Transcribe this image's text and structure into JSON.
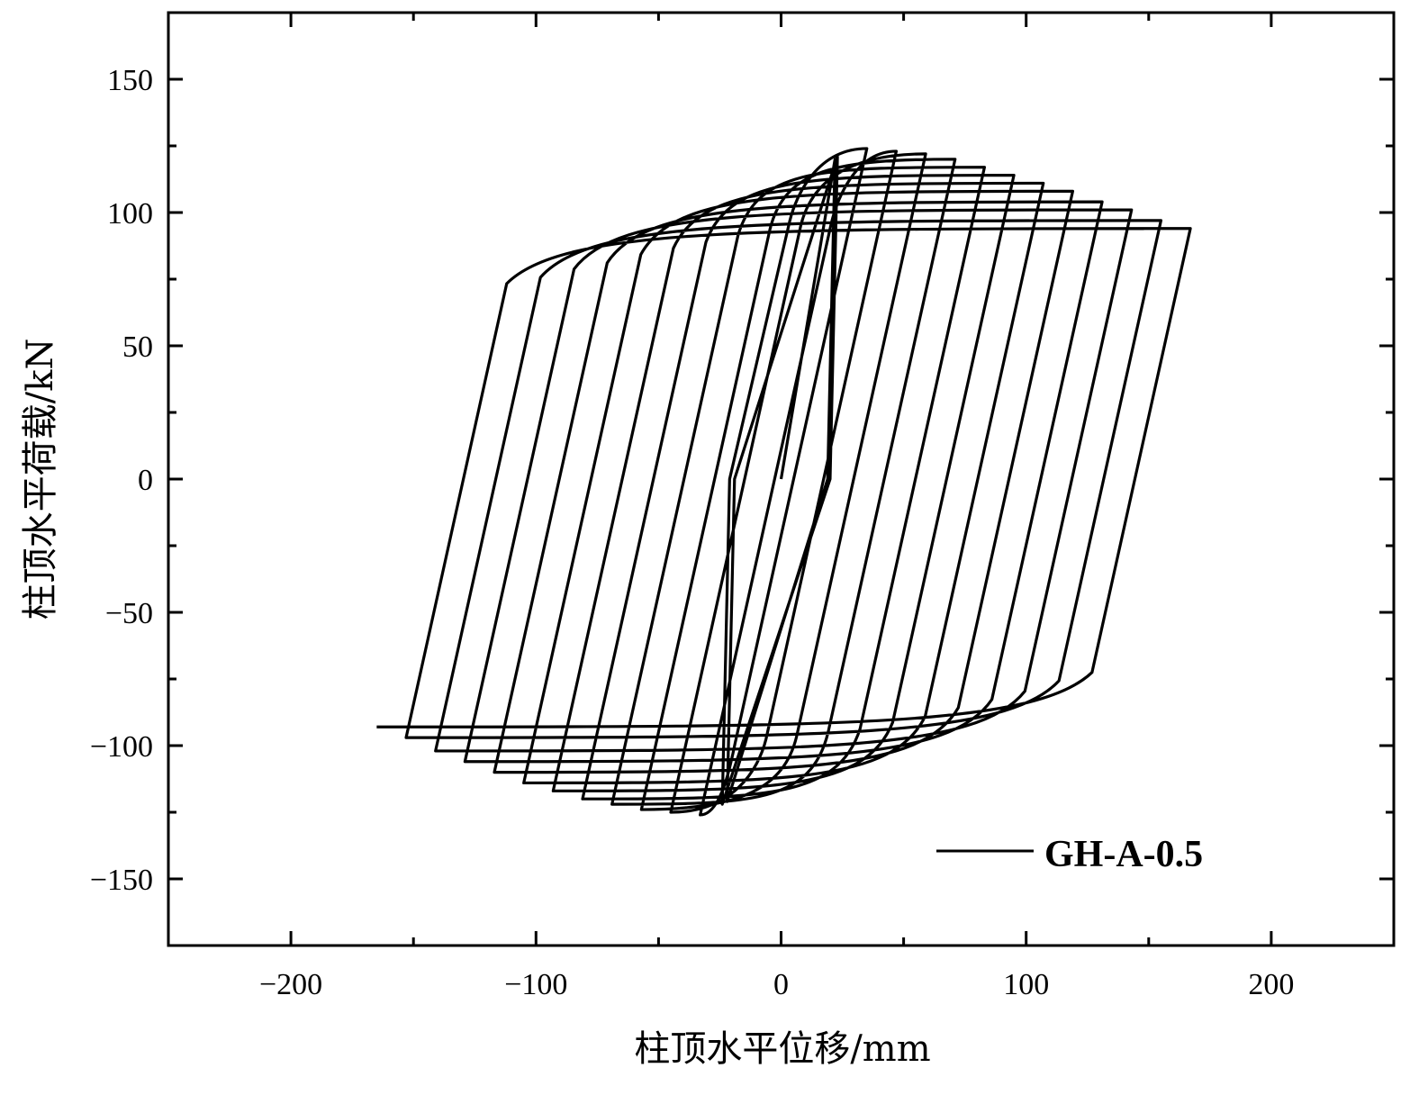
{
  "chart_data": {
    "type": "line",
    "title": "",
    "xlabel": "柱顶水平位移/mm",
    "ylabel": "柱顶水平荷载/kN",
    "xlim": [
      -250,
      250
    ],
    "ylim": [
      -175,
      175
    ],
    "xticks": [
      -200,
      -100,
      0,
      100,
      200
    ],
    "xtick_labels": [
      "−200",
      "−100",
      "0",
      "100",
      "200"
    ],
    "x_minor_step": 50,
    "yticks": [
      -150,
      -100,
      -50,
      0,
      50,
      100,
      150
    ],
    "ytick_labels": [
      "−150",
      "−100",
      "−50",
      "0",
      "50",
      "100",
      "150"
    ],
    "y_minor_step": 25,
    "grid": false,
    "legend": {
      "placement": "bottom-right",
      "entries": [
        "GH-A-0.5"
      ]
    },
    "series": [
      {
        "name": "GH-A-0.5",
        "color": "#000000",
        "elastic_cycles": [
          {
            "pos_peak": [
              22,
              120
            ],
            "neg_peak": [
              -22,
              -121
            ]
          },
          {
            "pos_peak": [
              23,
              121
            ],
            "neg_peak": [
              -24,
              -122
            ]
          }
        ],
        "cycles": [
          {
            "pos_peak": [
              35,
              124
            ],
            "neg_peak": [
              -33,
              -126
            ]
          },
          {
            "pos_peak": [
              47,
              123
            ],
            "neg_peak": [
              -45,
              -125
            ]
          },
          {
            "pos_peak": [
              59,
              122
            ],
            "neg_peak": [
              -57,
              -124
            ]
          },
          {
            "pos_peak": [
              71,
              120
            ],
            "neg_peak": [
              -69,
              -122
            ]
          },
          {
            "pos_peak": [
              83,
              117
            ],
            "neg_peak": [
              -81,
              -120
            ]
          },
          {
            "pos_peak": [
              95,
              114
            ],
            "neg_peak": [
              -93,
              -117
            ]
          },
          {
            "pos_peak": [
              107,
              111
            ],
            "neg_peak": [
              -105,
              -114
            ]
          },
          {
            "pos_peak": [
              119,
              108
            ],
            "neg_peak": [
              -117,
              -110
            ]
          },
          {
            "pos_peak": [
              131,
              104
            ],
            "neg_peak": [
              -129,
              -106
            ]
          },
          {
            "pos_peak": [
              143,
              101
            ],
            "neg_peak": [
              -141,
              -102
            ]
          },
          {
            "pos_peak": [
              155,
              97
            ],
            "neg_peak": [
              -153,
              -97
            ]
          },
          {
            "pos_peak": [
              167,
              94
            ],
            "neg_peak": [
              -165,
              -93
            ]
          }
        ]
      }
    ]
  }
}
